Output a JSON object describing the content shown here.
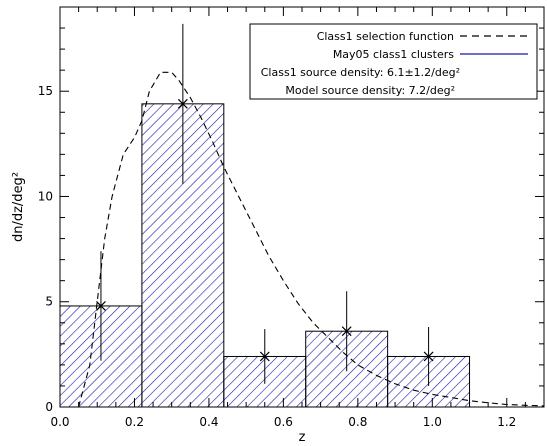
{
  "chart_data": {
    "type": "bar",
    "title": "",
    "xlabel": "z",
    "ylabel": "dn/dz/deg²",
    "xlim": [
      0.0,
      1.3
    ],
    "ylim": [
      0,
      19
    ],
    "x_ticks": [
      "0.0",
      "0.2",
      "0.4",
      "0.6",
      "0.8",
      "1.0",
      "1.2"
    ],
    "y_ticks": [
      "0",
      "5",
      "10",
      "15"
    ],
    "grid": false,
    "legend_position": "top-right",
    "histogram": {
      "name": "May05 class1 clusters",
      "color": "#1a1aa8",
      "bin_edges": [
        0.0,
        0.22,
        0.44,
        0.66,
        0.88,
        1.1
      ],
      "values": [
        4.8,
        14.4,
        2.4,
        3.6,
        2.4
      ]
    },
    "points": {
      "x": [
        0.11,
        0.33,
        0.55,
        0.77,
        0.99
      ],
      "y": [
        4.8,
        14.4,
        2.4,
        3.6,
        2.4
      ],
      "err_low": [
        2.6,
        3.8,
        1.3,
        1.9,
        1.4
      ],
      "err_high": [
        2.6,
        3.8,
        1.3,
        1.9,
        1.4
      ]
    },
    "selection_function": {
      "name": "Class1  selection function",
      "color": "#000000",
      "x": [
        0.05,
        0.08,
        0.1,
        0.12,
        0.14,
        0.17,
        0.2,
        0.22,
        0.24,
        0.27,
        0.3,
        0.32,
        0.35,
        0.38,
        0.41,
        0.44,
        0.48,
        0.52,
        0.56,
        0.6,
        0.64,
        0.68,
        0.72,
        0.76,
        0.8,
        0.85,
        0.9,
        0.95,
        1.0,
        1.05,
        1.1,
        1.15,
        1.2,
        1.25,
        1.3
      ],
      "y": [
        0.0,
        2.0,
        5.0,
        8.0,
        10.0,
        12.0,
        12.8,
        13.6,
        15.0,
        15.9,
        15.9,
        15.5,
        14.7,
        13.7,
        12.6,
        11.4,
        10.0,
        8.6,
        7.2,
        6.0,
        4.9,
        4.0,
        3.3,
        2.6,
        2.0,
        1.5,
        1.1,
        0.8,
        0.6,
        0.45,
        0.3,
        0.2,
        0.12,
        0.08,
        0.05
      ]
    },
    "legend": {
      "line1": "Class1  selection function",
      "line2": "May05 class1 clusters",
      "line3": "Class1 source density: 6.1±1.2/deg²",
      "line4": "Model source density: 7.2/deg²"
    }
  }
}
